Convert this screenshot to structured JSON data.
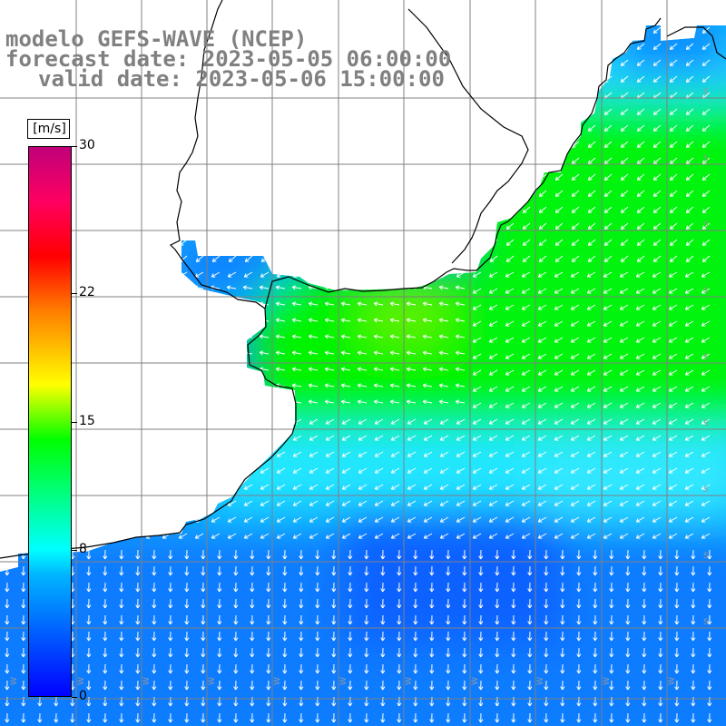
{
  "title": {
    "line1": "modelo GEFS-WAVE (NCEP)",
    "line2": "forecast date: 2023-05-05 06:00:00",
    "line3": "valid date: 2023-05-06 15:00:00"
  },
  "legend": {
    "unit": "[m/s]",
    "ticks": [
      "30",
      "22",
      "15",
      "8",
      "0"
    ],
    "tick_values": [
      30,
      22,
      15,
      8,
      0
    ],
    "range": [
      0,
      30
    ]
  },
  "colors": {
    "land": "#ffffff",
    "gridline": "#808080",
    "coast": "#000000",
    "arrow": "#ffffff",
    "title": "#808080"
  },
  "wind_field": {
    "variable": "wind speed",
    "units": "m/s",
    "regions": [
      {
        "name": "southern band",
        "speed_approx": 4,
        "direction": "south"
      },
      {
        "name": "central ocean",
        "speed_approx": 8,
        "direction": "southwest"
      },
      {
        "name": "northeast ocean",
        "speed_approx": 12,
        "direction": "southwest"
      },
      {
        "name": "gulf near coast",
        "speed_approx": 13,
        "direction": "west"
      }
    ]
  }
}
